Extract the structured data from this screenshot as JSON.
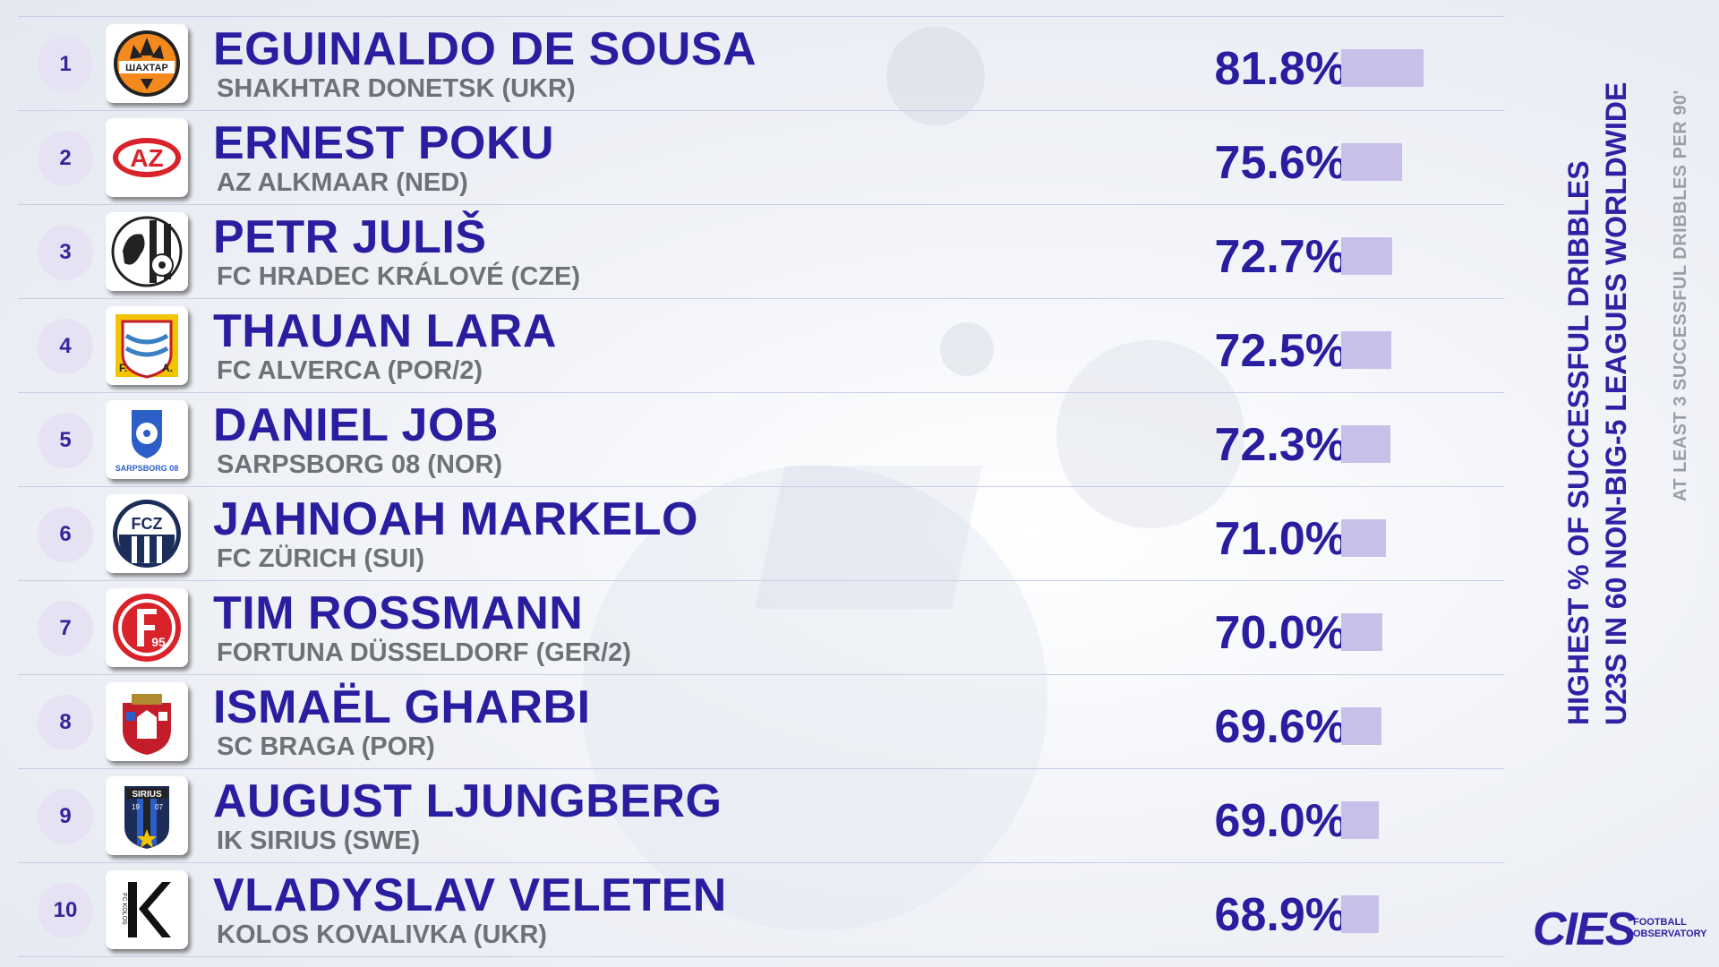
{
  "title_lines": [
    "HIGHEST % OF SUCCESSFUL DRIBBLES",
    "U23S IN 60 NON-BIG-5 LEAGUES WORLDWIDE"
  ],
  "subtitle": "AT LEAST 3 SUCCESSFUL DRIBBLES PER 90'",
  "source": {
    "brand": "CIES",
    "subtitle_lines": [
      "FOOTBALL",
      "OBSERVATORY"
    ]
  },
  "colors": {
    "primary": "#2a1ea0",
    "bar": "#c8c0e8",
    "club_text": "#6e7277",
    "rank_bg": "#e6e2f3"
  },
  "chart_data": {
    "type": "bar",
    "orientation": "horizontal",
    "title": "HIGHEST % OF SUCCESSFUL DRIBBLES U23S IN 60 NON-BIG-5 LEAGUES WORLDWIDE",
    "subtitle": "AT LEAST 3 SUCCESSFUL DRIBBLES PER 90'",
    "unit": "%",
    "rows": [
      {
        "rank": "1",
        "player": "EGUINALDO DE SOUSA",
        "club": "SHAKHTAR DONETSK (UKR)",
        "label": "81.8%",
        "value": 81.8,
        "logo": "shakhtar-donetsk-crest"
      },
      {
        "rank": "2",
        "player": "ERNEST POKU",
        "club": "AZ ALKMAAR (NED)",
        "label": "75.6%",
        "value": 75.6,
        "logo": "az-alkmaar-crest"
      },
      {
        "rank": "3",
        "player": "PETR JULIŠ",
        "club": "FC HRADEC KRÁLOVÉ (CZE)",
        "label": "72.7%",
        "value": 72.7,
        "logo": "hradec-kralove-crest"
      },
      {
        "rank": "4",
        "player": "THAUAN LARA",
        "club": "FC ALVERCA (POR/2)",
        "label": "72.5%",
        "value": 72.5,
        "logo": "alverca-crest"
      },
      {
        "rank": "5",
        "player": "DANIEL JOB",
        "club": "SARPSBORG 08 (NOR)",
        "label": "72.3%",
        "value": 72.3,
        "logo": "sarpsborg-crest"
      },
      {
        "rank": "6",
        "player": "JAHNOAH MARKELO",
        "club": "FC ZÜRICH (SUI)",
        "label": "71.0%",
        "value": 71.0,
        "logo": "fc-zurich-crest"
      },
      {
        "rank": "7",
        "player": "TIM ROSSMANN",
        "club": "FORTUNA DÜSSELDORF (GER/2)",
        "label": "70.0%",
        "value": 70.0,
        "logo": "fortuna-dusseldorf-crest"
      },
      {
        "rank": "8",
        "player": "ISMAËL GHARBI",
        "club": "SC BRAGA (POR)",
        "label": "69.6%",
        "value": 69.6,
        "logo": "sc-braga-crest"
      },
      {
        "rank": "9",
        "player": "AUGUST LJUNGBERG",
        "club": "IK SIRIUS (SWE)",
        "label": "69.0%",
        "value": 69.0,
        "logo": "ik-sirius-crest"
      },
      {
        "rank": "10",
        "player": "VLADYSLAV VELETEN",
        "club": "KOLOS KOVALIVKA (UKR)",
        "label": "68.9%",
        "value": 68.9,
        "logo": "kolos-kovalivka-crest"
      }
    ],
    "logo_text": {
      "shakhtar": "ШАХТАР",
      "az": "AZ",
      "sarpsborg": "SARPSBORG 08",
      "zurich": "FCZ",
      "fortuna": "95",
      "sirius": "SIRIUS",
      "sirius_years": [
        "19",
        "07"
      ],
      "alverca": [
        "F.",
        "A."
      ],
      "kolos": "FC KOLOS"
    }
  }
}
